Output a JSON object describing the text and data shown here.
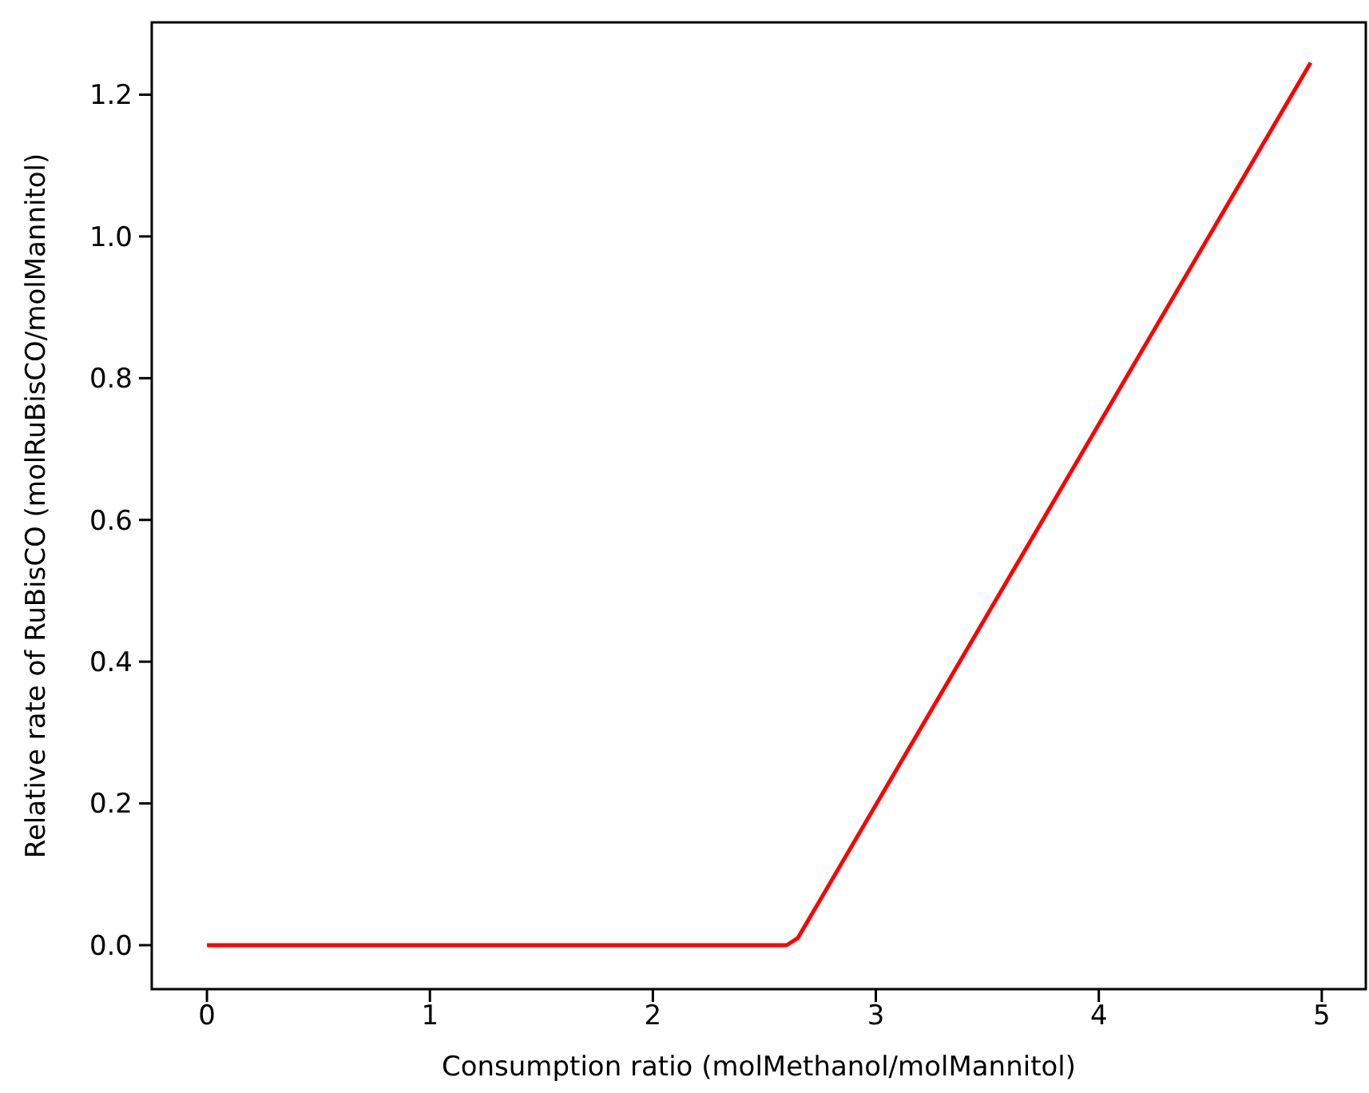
{
  "chart_data": {
    "type": "line",
    "xlabel": "Consumption ratio (molMethanol/molMannitol)",
    "ylabel": "Relative rate of RuBisCO (molRuBisCO/molMannitol)",
    "x": [
      0,
      2.6,
      2.65,
      4.95
    ],
    "series": [
      {
        "color": "#ff0000",
        "values": [
          0,
          0,
          0.01,
          1.245
        ]
      }
    ],
    "xlim": [
      -0.2475,
      5.1975
    ],
    "xticks": [
      0,
      1,
      2,
      3,
      4,
      5
    ],
    "ylim": [
      -0.062,
      1.302
    ],
    "yticks": [
      {
        "value": 0,
        "label": "0.0"
      },
      {
        "value": 0.2,
        "label": "0.2"
      },
      {
        "value": 0.4,
        "label": "0.4"
      },
      {
        "value": 0.6,
        "label": "0.6"
      },
      {
        "value": 0.8,
        "label": "0.8"
      },
      {
        "value": 1,
        "label": "1.0"
      },
      {
        "value": 1.2,
        "label": "1.2"
      }
    ],
    "grid": false,
    "marker": "none",
    "line_style": "solid"
  }
}
